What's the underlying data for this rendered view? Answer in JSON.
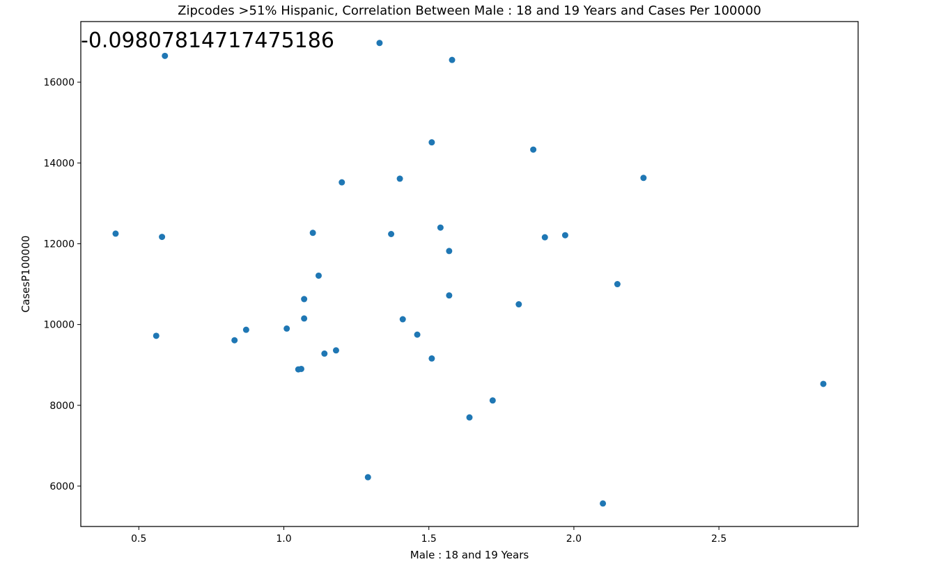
{
  "chart_data": {
    "type": "scatter",
    "title": "Zipcodes >51% Hispanic, Correlation Between Male : 18 and 19 Years and Cases Per 100000",
    "xlabel": "Male : 18 and 19 Years",
    "ylabel": "CasesP100000",
    "annotation": "-0.09807814717475186",
    "xlim": [
      0.3,
      2.98
    ],
    "ylim": [
      5000,
      17500
    ],
    "xticks": [
      0.5,
      1.0,
      1.5,
      2.0,
      2.5
    ],
    "xtick_labels": [
      "0.5",
      "1.0",
      "1.5",
      "2.0",
      "2.5"
    ],
    "yticks": [
      6000,
      8000,
      10000,
      12000,
      14000,
      16000
    ],
    "ytick_labels": [
      "6000",
      "8000",
      "10000",
      "12000",
      "14000",
      "16000"
    ],
    "grid": false,
    "marker_color": "#1f77b4",
    "points": [
      {
        "x": 0.42,
        "y": 12250
      },
      {
        "x": 0.56,
        "y": 9720
      },
      {
        "x": 0.58,
        "y": 12170
      },
      {
        "x": 0.59,
        "y": 16650
      },
      {
        "x": 0.83,
        "y": 9610
      },
      {
        "x": 0.87,
        "y": 9870
      },
      {
        "x": 1.01,
        "y": 9900
      },
      {
        "x": 1.05,
        "y": 8890
      },
      {
        "x": 1.06,
        "y": 8900
      },
      {
        "x": 1.07,
        "y": 10630
      },
      {
        "x": 1.07,
        "y": 10150
      },
      {
        "x": 1.1,
        "y": 12270
      },
      {
        "x": 1.12,
        "y": 11210
      },
      {
        "x": 1.14,
        "y": 9280
      },
      {
        "x": 1.18,
        "y": 9360
      },
      {
        "x": 1.2,
        "y": 13520
      },
      {
        "x": 1.29,
        "y": 6220
      },
      {
        "x": 1.33,
        "y": 16970
      },
      {
        "x": 1.37,
        "y": 12240
      },
      {
        "x": 1.4,
        "y": 13610
      },
      {
        "x": 1.41,
        "y": 10130
      },
      {
        "x": 1.46,
        "y": 9750
      },
      {
        "x": 1.51,
        "y": 14510
      },
      {
        "x": 1.51,
        "y": 9160
      },
      {
        "x": 1.54,
        "y": 12400
      },
      {
        "x": 1.57,
        "y": 11820
      },
      {
        "x": 1.57,
        "y": 10720
      },
      {
        "x": 1.58,
        "y": 16550
      },
      {
        "x": 1.64,
        "y": 7700
      },
      {
        "x": 1.72,
        "y": 8120
      },
      {
        "x": 1.81,
        "y": 10500
      },
      {
        "x": 1.86,
        "y": 14330
      },
      {
        "x": 1.9,
        "y": 12160
      },
      {
        "x": 1.97,
        "y": 12210
      },
      {
        "x": 2.1,
        "y": 5570
      },
      {
        "x": 2.15,
        "y": 11000
      },
      {
        "x": 2.24,
        "y": 13630
      },
      {
        "x": 2.86,
        "y": 8530
      }
    ]
  }
}
